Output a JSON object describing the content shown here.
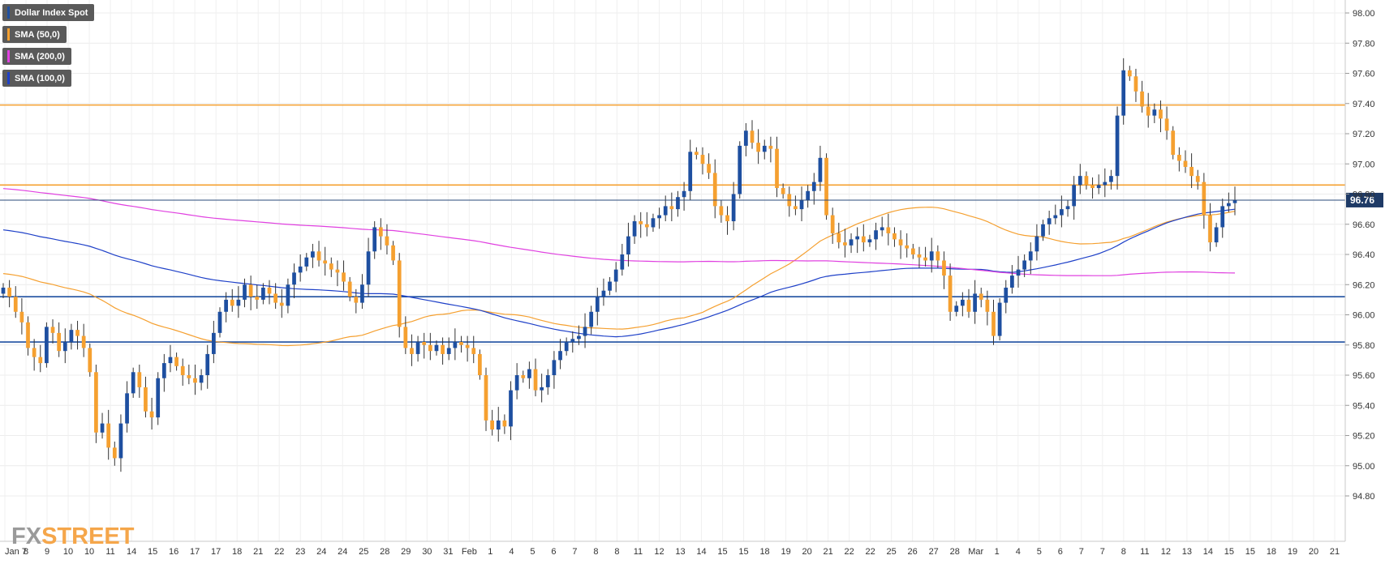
{
  "chart_data": {
    "type": "candlestick",
    "title": "",
    "xlabel": "",
    "ylabel": "",
    "ylim": [
      94.7,
      98.05
    ],
    "y_ticks": [
      "98.00",
      "97.80",
      "97.60",
      "97.40",
      "97.20",
      "97.00",
      "96.80",
      "96.60",
      "96.40",
      "96.20",
      "96.00",
      "95.80",
      "95.60",
      "95.40",
      "95.20",
      "95.00",
      "94.80"
    ],
    "x_ticks": [
      "Jan 7",
      "8",
      "9",
      "10",
      "10",
      "11",
      "14",
      "15",
      "16",
      "17",
      "17",
      "18",
      "21",
      "22",
      "23",
      "24",
      "24",
      "25",
      "28",
      "29",
      "30",
      "31",
      "Feb",
      "1",
      "4",
      "5",
      "6",
      "7",
      "8",
      "8",
      "11",
      "12",
      "13",
      "14",
      "15",
      "15",
      "18",
      "19",
      "20",
      "21",
      "22",
      "22",
      "25",
      "26",
      "27",
      "28",
      "Mar",
      "1",
      "4",
      "5",
      "6",
      "7",
      "7",
      "8",
      "11",
      "12",
      "13",
      "14",
      "15",
      "15",
      "18",
      "19",
      "20",
      "21"
    ],
    "last_price": "96.76",
    "grid": true,
    "legend": {
      "position": "top-left",
      "entries": [
        {
          "label": "Dollar Index Spot",
          "color": "#1e4fa0"
        },
        {
          "label": "SMA (50,0)",
          "color": "#f5a030"
        },
        {
          "label": "SMA (200,0)",
          "color": "#e040e0"
        },
        {
          "label": "SMA (100,0)",
          "color": "#1e40c8"
        }
      ]
    },
    "horizontal_levels": [
      {
        "value": 97.39,
        "color": "#f5a030"
      },
      {
        "value": 96.86,
        "color": "#f5a030"
      },
      {
        "value": 96.12,
        "color": "#1e4fa0"
      },
      {
        "value": 95.82,
        "color": "#1e4fa0"
      }
    ],
    "price_line": {
      "value": 96.76,
      "color": "#2a4a7a"
    },
    "close_series": [
      96.18,
      96.12,
      96.02,
      95.95,
      95.78,
      95.72,
      95.68,
      95.92,
      95.88,
      95.76,
      95.82,
      95.9,
      95.86,
      95.78,
      95.62,
      95.22,
      95.28,
      95.12,
      95.05,
      95.28,
      95.48,
      95.62,
      95.52,
      95.36,
      95.32,
      95.58,
      95.68,
      95.72,
      95.66,
      95.6,
      95.58,
      95.55,
      95.6,
      95.74,
      95.88,
      96.02,
      96.1,
      96.06,
      96.1,
      96.2,
      96.12,
      96.1,
      96.18,
      96.14,
      96.08,
      96.06,
      96.2,
      96.28,
      96.32,
      96.38,
      96.42,
      96.36,
      96.34,
      96.3,
      96.28,
      96.22,
      96.12,
      96.08,
      96.2,
      96.42,
      96.58,
      96.52,
      96.46,
      96.36,
      95.92,
      95.78,
      95.74,
      95.82,
      95.8,
      95.76,
      95.8,
      95.74,
      95.78,
      95.82,
      95.8,
      95.78,
      95.74,
      95.6,
      95.3,
      95.24,
      95.3,
      95.26,
      95.5,
      95.6,
      95.58,
      95.64,
      95.5,
      95.52,
      95.6,
      95.7,
      95.76,
      95.82,
      95.84,
      95.86,
      95.92,
      96.02,
      96.12,
      96.16,
      96.22,
      96.3,
      96.4,
      96.52,
      96.62,
      96.6,
      96.58,
      96.64,
      96.66,
      96.72,
      96.7,
      96.78,
      96.82,
      97.08,
      97.06,
      97.0,
      96.94,
      96.72,
      96.66,
      96.62,
      96.8,
      97.12,
      97.22,
      97.14,
      97.08,
      97.12,
      97.1,
      96.84,
      96.8,
      96.72,
      96.7,
      96.76,
      96.82,
      96.88,
      97.04,
      96.66,
      96.54,
      96.48,
      96.46,
      96.5,
      96.52,
      96.48,
      96.5,
      96.56,
      96.58,
      96.54,
      96.5,
      96.46,
      96.44,
      96.4,
      96.38,
      96.36,
      96.42,
      96.36,
      96.26,
      96.02,
      96.06,
      96.1,
      96.02,
      96.14,
      96.1,
      96.02,
      95.86,
      96.08,
      96.18,
      96.26,
      96.3,
      96.36,
      96.42,
      96.52,
      96.6,
      96.64,
      96.66,
      96.7,
      96.72,
      96.86,
      96.92,
      96.86,
      96.84,
      96.86,
      96.88,
      96.92,
      97.32,
      97.62,
      97.58,
      97.48,
      97.38,
      97.32,
      97.36,
      97.3,
      97.22,
      97.06,
      97.02,
      96.98,
      96.92,
      96.88,
      96.66,
      96.48,
      96.58,
      96.72,
      96.74,
      96.76
    ]
  }
}
